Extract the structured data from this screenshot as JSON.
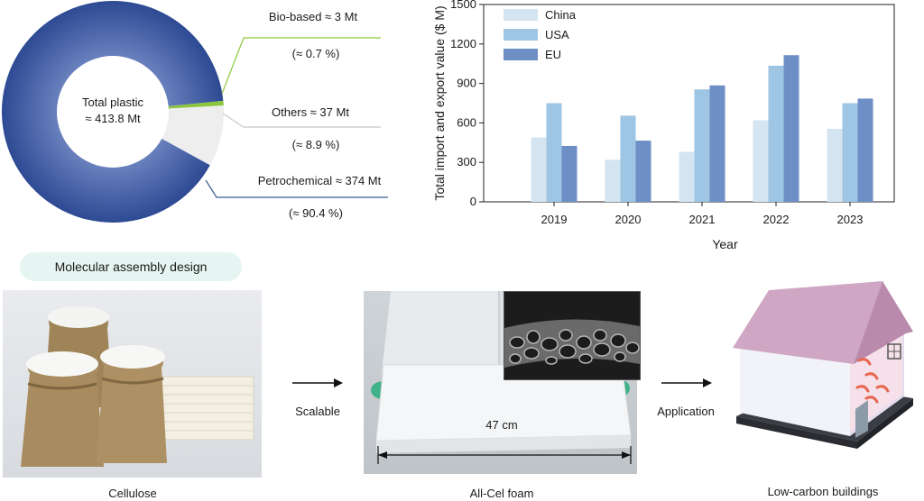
{
  "donut": {
    "center_line1": "Total plastic",
    "center_line2": "≈ 413.8 Mt",
    "segments": [
      {
        "name": "Bio-based",
        "label": "Bio-based  ≈ 3 Mt",
        "pct_label": "(≈ 0.7 %)",
        "share": 0.7,
        "color": "#8cc63f"
      },
      {
        "name": "Others",
        "label": "Others ≈ 37 Mt",
        "pct_label": "(≈ 8.9 %)",
        "share": 8.9,
        "color": "#eeeeee"
      },
      {
        "name": "Petrochemical",
        "label": "Petrochemical ≈ 374 Mt",
        "pct_label": "(≈ 90.4 %)",
        "share": 90.4,
        "color": "#4a66a8"
      }
    ]
  },
  "chart_data": {
    "type": "bar",
    "categories": [
      "2019",
      "2020",
      "2021",
      "2022",
      "2023"
    ],
    "series": [
      {
        "name": "China",
        "color": "#d4e5f1",
        "values": [
          490,
          320,
          380,
          620,
          555
        ]
      },
      {
        "name": "USA",
        "color": "#9ec6e4",
        "values": [
          750,
          655,
          855,
          1035,
          750
        ]
      },
      {
        "name": "EU",
        "color": "#6e8fc6",
        "values": [
          425,
          465,
          885,
          1115,
          785
        ]
      }
    ],
    "xlabel": "Year",
    "ylabel": "Total import and export value ($ M)",
    "ylim": [
      0,
      1500
    ],
    "yticks": [
      "0",
      "300",
      "600",
      "900",
      "1200",
      "1500"
    ],
    "legend_position": "top-left"
  },
  "process": {
    "badge": "Molecular assembly design",
    "cellulose_caption": "Cellulose",
    "scalable_label": "Scalable",
    "foam_caption": "All-Cel foam",
    "foam_dimension": "47 cm",
    "application_label": "Application",
    "building_caption": "Low-carbon buildings"
  }
}
